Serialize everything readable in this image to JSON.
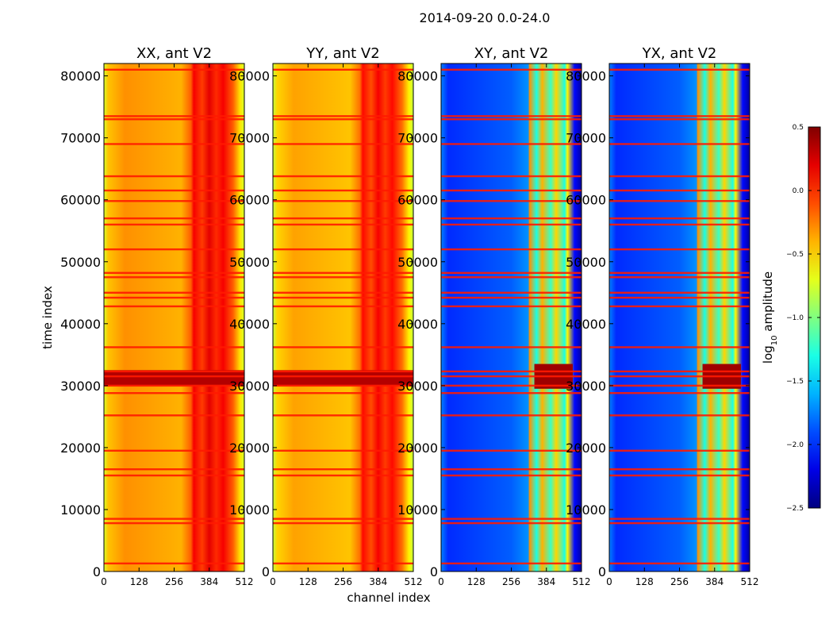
{
  "chart_data": {
    "type": "heatmap",
    "suptitle": "2014-09-20 0.0-24.0",
    "xlabel": "channel index",
    "ylabel": "time index",
    "xlim": [
      0,
      512
    ],
    "ylim": [
      0,
      82000
    ],
    "x_ticks": [
      "0",
      "128",
      "256",
      "384",
      "512"
    ],
    "x_tick_values": [
      0,
      128,
      256,
      384,
      512
    ],
    "y_ticks": [
      "0",
      "10000",
      "20000",
      "30000",
      "40000",
      "50000",
      "60000",
      "70000",
      "80000"
    ],
    "y_tick_values": [
      0,
      10000,
      20000,
      30000,
      40000,
      50000,
      60000,
      70000,
      80000
    ],
    "panels": [
      {
        "title": "XX, ant V2",
        "polarization": "XX",
        "base_level": -0.3
      },
      {
        "title": "YY, ant V2",
        "polarization": "YY",
        "base_level": -0.35
      },
      {
        "title": "XY, ant V2",
        "polarization": "XY",
        "base_level": -1.9
      },
      {
        "title": "YX, ant V2",
        "polarization": "YX",
        "base_level": -1.9
      }
    ],
    "colorbar": {
      "label": "log",
      "label_sub": "10",
      "label_rest": " amplitude",
      "range": [
        -2.5,
        0.5
      ],
      "tick_values": [
        -2.5,
        -2.0,
        -1.5,
        -1.0,
        -0.5,
        0.0,
        0.5
      ],
      "tick_labels": [
        "−2.5",
        "−2.0",
        "−1.5",
        "−1.0",
        "−0.5",
        "0.0",
        "0.5"
      ],
      "colormap": "jet"
    },
    "flagged_time_rows": [
      1300,
      7800,
      8500,
      15500,
      16500,
      19500,
      25200,
      28800,
      30000,
      31500,
      32300,
      36200,
      42800,
      44200,
      45000,
      47500,
      48200,
      52000,
      56000,
      57000,
      59800,
      61500,
      63800,
      69000,
      73000,
      73500,
      81000
    ],
    "rfi_band_channels": [
      325,
      500
    ],
    "strong_burst_time_range": [
      29500,
      33500
    ]
  }
}
